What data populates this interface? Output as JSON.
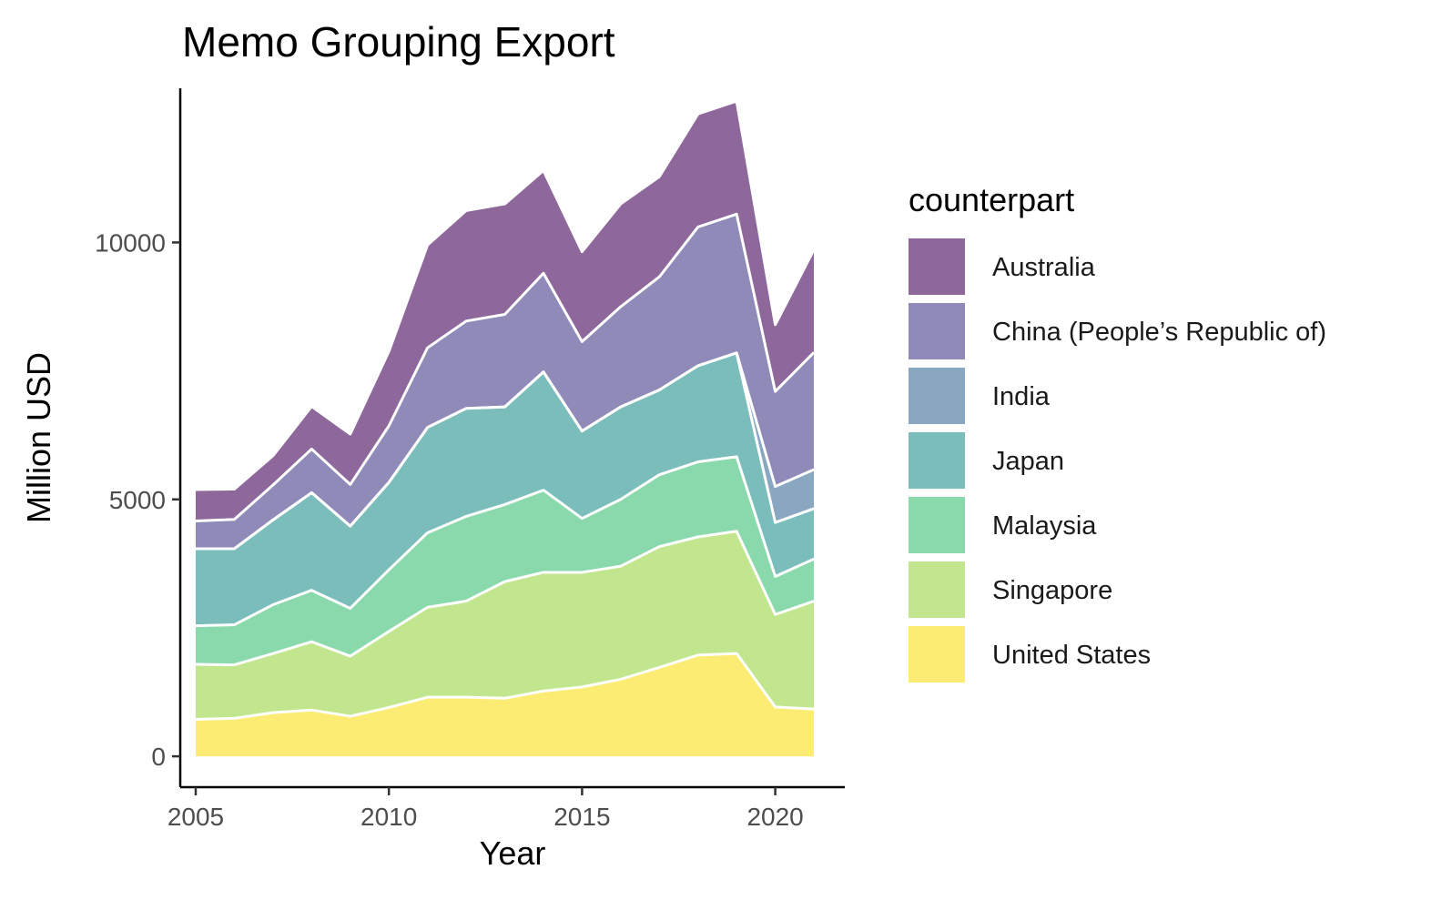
{
  "chart_data": {
    "type": "area",
    "stacked": true,
    "title": "Memo Grouping Export",
    "xlabel": "Year",
    "ylabel": "Million USD",
    "xlim": [
      2004.6,
      2021.8
    ],
    "ylim": [
      -600,
      13000
    ],
    "xticks": [
      2005,
      2010,
      2015,
      2020
    ],
    "yticks": [
      0,
      5000,
      10000
    ],
    "x_tick_labels": [
      "2005",
      "2010",
      "2015",
      "2020"
    ],
    "y_tick_labels": [
      "0",
      "5000",
      "10000"
    ],
    "legend_title": "counterpart",
    "legend_position": "right",
    "grid": false,
    "x": [
      2005,
      2006,
      2007,
      2008,
      2009,
      2010,
      2011,
      2012,
      2013,
      2014,
      2015,
      2016,
      2017,
      2018,
      2019,
      2020,
      2021
    ],
    "series": [
      {
        "name": "United States",
        "color": "#fde95a",
        "values": [
          720,
          740,
          850,
          900,
          780,
          950,
          1150,
          1150,
          1130,
          1270,
          1350,
          1500,
          1730,
          1970,
          2000,
          960,
          920
        ]
      },
      {
        "name": "Singapore",
        "color": "#b7e279",
        "values": [
          1070,
          1040,
          1150,
          1330,
          1170,
          1480,
          1750,
          1870,
          2270,
          2310,
          2230,
          2200,
          2350,
          2300,
          2380,
          1800,
          2100
        ]
      },
      {
        "name": "Malaysia",
        "color": "#75d29e",
        "values": [
          750,
          780,
          950,
          1000,
          930,
          1200,
          1450,
          1650,
          1500,
          1600,
          1050,
          1300,
          1400,
          1460,
          1450,
          740,
          820
        ]
      },
      {
        "name": "Japan",
        "color": "#63b1ae",
        "values": [
          1500,
          1480,
          1650,
          1900,
          1600,
          1700,
          2050,
          2100,
          1900,
          2300,
          1700,
          1800,
          1650,
          1870,
          2020,
          1050,
          980
        ]
      },
      {
        "name": "India",
        "color": "#7498b5",
        "values": [
          0,
          0,
          0,
          0,
          0,
          0,
          0,
          0,
          0,
          0,
          0,
          0,
          0,
          0,
          0,
          700,
          760
        ]
      },
      {
        "name": "China (People’s Republic of)",
        "color": "#7b75ab",
        "values": [
          540,
          570,
          680,
          850,
          810,
          1100,
          1550,
          1700,
          1800,
          1920,
          1740,
          1950,
          2200,
          2700,
          2700,
          1850,
          2280
        ]
      },
      {
        "name": "Australia",
        "color": "#7b4d89",
        "values": [
          610,
          590,
          570,
          830,
          980,
          1450,
          2000,
          2150,
          2150,
          2000,
          1750,
          2000,
          1950,
          2200,
          2200,
          1300,
          2000
        ]
      }
    ],
    "legend_order": [
      "Australia",
      "China (People’s Republic of)",
      "India",
      "Japan",
      "Malaysia",
      "Singapore",
      "United States"
    ]
  }
}
